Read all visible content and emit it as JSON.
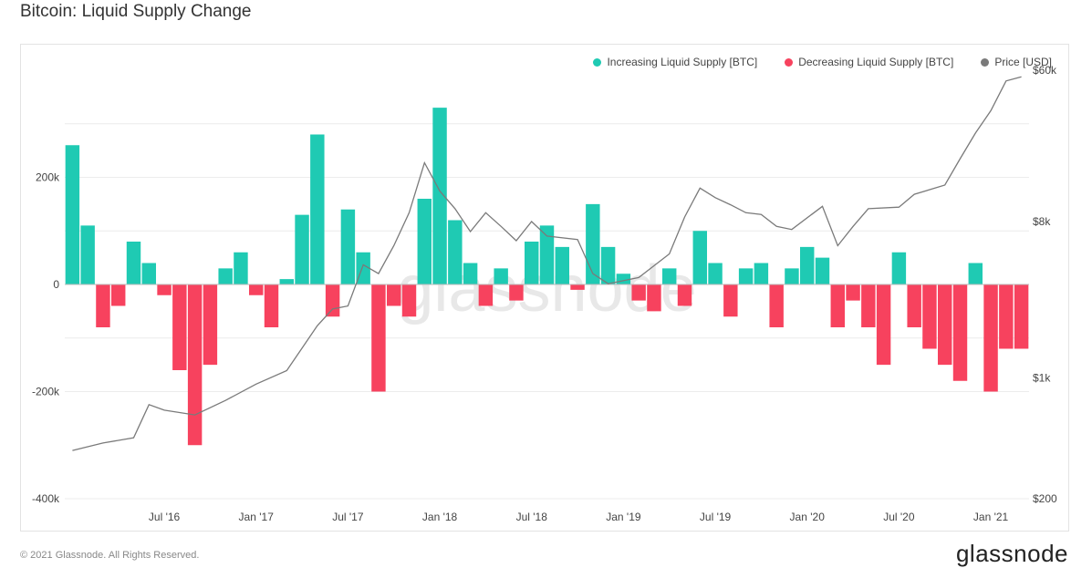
{
  "header": {
    "title": "Bitcoin: Liquid Supply Change"
  },
  "footer": {
    "copyright": "© 2021 Glassnode. All Rights Reserved.",
    "brand": "glassnode"
  },
  "watermark": "glassnode",
  "colors": {
    "increase": "#1fcab3",
    "decrease": "#f7425e",
    "price": "#7a7a7a",
    "grid": "#ececec"
  },
  "chart_data": {
    "type": "bar",
    "title": "Bitcoin: Liquid Supply Change",
    "legend": {
      "placement": "top-right",
      "entries": [
        "Increasing Liquid Supply [BTC]",
        "Decreasing Liquid Supply [BTC]",
        "Price [USD]"
      ]
    },
    "x_ticks": [
      "Jul '16",
      "Jan '17",
      "Jul '17",
      "Jan '18",
      "Jul '18",
      "Jan '19",
      "Jul '19",
      "Jan '20",
      "Jul '20",
      "Jan '21"
    ],
    "x_range": [
      "2016-01",
      "2021-03"
    ],
    "y_left": {
      "ticks": [
        "200k",
        "0",
        "-200k",
        "-400k"
      ],
      "tick_values": [
        200000,
        0,
        -200000,
        -400000
      ],
      "range": [
        -400000,
        400000
      ]
    },
    "y_right": {
      "scale": "log",
      "ticks": [
        "$60k",
        "$8k",
        "$1k",
        "$200"
      ],
      "tick_values": [
        60000,
        8000,
        1000,
        200
      ],
      "range": [
        200,
        60000
      ]
    },
    "grid": true,
    "series": [
      {
        "name": "Liquid Supply Change [BTC]",
        "points": [
          [
            "2016-01",
            260000
          ],
          [
            "2016-02",
            110000
          ],
          [
            "2016-03",
            -80000
          ],
          [
            "2016-04",
            -40000
          ],
          [
            "2016-05",
            80000
          ],
          [
            "2016-06",
            40000
          ],
          [
            "2016-07",
            -20000
          ],
          [
            "2016-08",
            -160000
          ],
          [
            "2016-09",
            -300000
          ],
          [
            "2016-10",
            -150000
          ],
          [
            "2016-11",
            30000
          ],
          [
            "2016-12",
            60000
          ],
          [
            "2017-01",
            -20000
          ],
          [
            "2017-02",
            -80000
          ],
          [
            "2017-03",
            10000
          ],
          [
            "2017-04",
            130000
          ],
          [
            "2017-05",
            280000
          ],
          [
            "2017-06",
            -60000
          ],
          [
            "2017-07",
            140000
          ],
          [
            "2017-08",
            60000
          ],
          [
            "2017-09",
            -200000
          ],
          [
            "2017-10",
            -40000
          ],
          [
            "2017-11",
            -60000
          ],
          [
            "2017-12",
            160000
          ],
          [
            "2018-01",
            330000
          ],
          [
            "2018-02",
            120000
          ],
          [
            "2018-03",
            40000
          ],
          [
            "2018-04",
            -40000
          ],
          [
            "2018-05",
            30000
          ],
          [
            "2018-06",
            -30000
          ],
          [
            "2018-07",
            80000
          ],
          [
            "2018-08",
            110000
          ],
          [
            "2018-09",
            70000
          ],
          [
            "2018-10",
            -10000
          ],
          [
            "2018-11",
            150000
          ],
          [
            "2018-12",
            70000
          ],
          [
            "2019-01",
            20000
          ],
          [
            "2019-02",
            -30000
          ],
          [
            "2019-03",
            -50000
          ],
          [
            "2019-04",
            30000
          ],
          [
            "2019-05",
            -40000
          ],
          [
            "2019-06",
            100000
          ],
          [
            "2019-07",
            40000
          ],
          [
            "2019-08",
            -60000
          ],
          [
            "2019-09",
            30000
          ],
          [
            "2019-10",
            40000
          ],
          [
            "2019-11",
            -80000
          ],
          [
            "2019-12",
            30000
          ],
          [
            "2020-01",
            70000
          ],
          [
            "2020-02",
            50000
          ],
          [
            "2020-03",
            -80000
          ],
          [
            "2020-04",
            -30000
          ],
          [
            "2020-05",
            -80000
          ],
          [
            "2020-06",
            -150000
          ],
          [
            "2020-07",
            60000
          ],
          [
            "2020-08",
            -80000
          ],
          [
            "2020-09",
            -120000
          ],
          [
            "2020-10",
            -150000
          ],
          [
            "2020-11",
            -180000
          ],
          [
            "2020-12",
            40000
          ],
          [
            "2021-01",
            -200000
          ],
          [
            "2021-02",
            -120000
          ],
          [
            "2021-03",
            -120000
          ]
        ]
      },
      {
        "name": "Price [USD]",
        "points": [
          [
            "2016-01",
            380
          ],
          [
            "2016-03",
            420
          ],
          [
            "2016-05",
            450
          ],
          [
            "2016-06",
            700
          ],
          [
            "2016-07",
            650
          ],
          [
            "2016-09",
            610
          ],
          [
            "2016-11",
            740
          ],
          [
            "2017-01",
            920
          ],
          [
            "2017-03",
            1100
          ],
          [
            "2017-05",
            2000
          ],
          [
            "2017-06",
            2500
          ],
          [
            "2017-07",
            2600
          ],
          [
            "2017-08",
            4500
          ],
          [
            "2017-09",
            4000
          ],
          [
            "2017-10",
            5800
          ],
          [
            "2017-11",
            9000
          ],
          [
            "2017-12",
            17500
          ],
          [
            "2018-01",
            12000
          ],
          [
            "2018-02",
            9500
          ],
          [
            "2018-03",
            7000
          ],
          [
            "2018-04",
            9000
          ],
          [
            "2018-05",
            7500
          ],
          [
            "2018-06",
            6200
          ],
          [
            "2018-07",
            8000
          ],
          [
            "2018-08",
            6600
          ],
          [
            "2018-10",
            6300
          ],
          [
            "2018-11",
            4000
          ],
          [
            "2018-12",
            3500
          ],
          [
            "2019-02",
            3800
          ],
          [
            "2019-04",
            5200
          ],
          [
            "2019-05",
            8500
          ],
          [
            "2019-06",
            12500
          ],
          [
            "2019-07",
            11000
          ],
          [
            "2019-08",
            10000
          ],
          [
            "2019-09",
            9000
          ],
          [
            "2019-10",
            8800
          ],
          [
            "2019-11",
            7500
          ],
          [
            "2019-12",
            7200
          ],
          [
            "2020-02",
            9800
          ],
          [
            "2020-03",
            5800
          ],
          [
            "2020-04",
            7500
          ],
          [
            "2020-05",
            9500
          ],
          [
            "2020-07",
            9700
          ],
          [
            "2020-08",
            11500
          ],
          [
            "2020-10",
            13000
          ],
          [
            "2020-11",
            18500
          ],
          [
            "2020-12",
            26000
          ],
          [
            "2021-01",
            35000
          ],
          [
            "2021-02",
            52000
          ],
          [
            "2021-03",
            55000
          ]
        ]
      }
    ]
  }
}
